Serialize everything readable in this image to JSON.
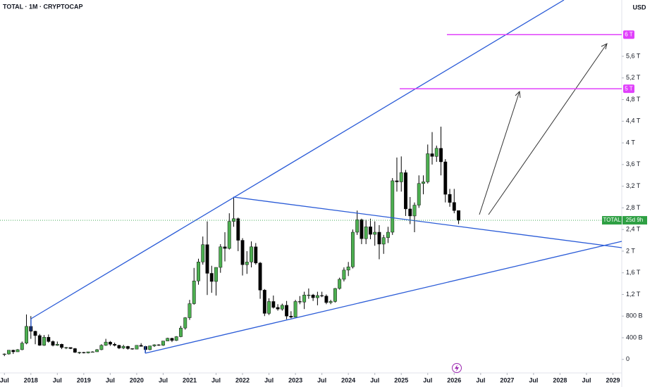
{
  "chart_data": {
    "type": "candlestick",
    "title": "TOTAL · 1M · CRYPTOCAP",
    "currency": "USD",
    "symbol": "TOTAL",
    "countdown": "25d 9h",
    "up_color": "#4caf50",
    "down_color": "#000000",
    "level_color": "#e040fb",
    "price_color": "#2ea043",
    "x": [
      "2017-07",
      "2017-08",
      "2017-09",
      "2017-10",
      "2017-11",
      "2017-12",
      "2018-01",
      "2018-02",
      "2018-03",
      "2018-04",
      "2018-05",
      "2018-06",
      "2018-07",
      "2018-08",
      "2018-09",
      "2018-10",
      "2018-11",
      "2018-12",
      "2019-01",
      "2019-02",
      "2019-03",
      "2019-04",
      "2019-05",
      "2019-06",
      "2019-07",
      "2019-08",
      "2019-09",
      "2019-10",
      "2019-11",
      "2019-12",
      "2020-01",
      "2020-02",
      "2020-03",
      "2020-04",
      "2020-05",
      "2020-06",
      "2020-07",
      "2020-08",
      "2020-09",
      "2020-10",
      "2020-11",
      "2020-12",
      "2021-01",
      "2021-02",
      "2021-03",
      "2021-04",
      "2021-05",
      "2021-06",
      "2021-07",
      "2021-08",
      "2021-09",
      "2021-10",
      "2021-11",
      "2021-12",
      "2022-01",
      "2022-02",
      "2022-03",
      "2022-04",
      "2022-05",
      "2022-06",
      "2022-07",
      "2022-08",
      "2022-09",
      "2022-10",
      "2022-11",
      "2022-12",
      "2023-01",
      "2023-02",
      "2023-03",
      "2023-04",
      "2023-05",
      "2023-06",
      "2023-07",
      "2023-08",
      "2023-09",
      "2023-10",
      "2023-11",
      "2023-12",
      "2024-01",
      "2024-02",
      "2024-03",
      "2024-04",
      "2024-05",
      "2024-06",
      "2024-07",
      "2024-08",
      "2024-09",
      "2024-10",
      "2024-11",
      "2024-12",
      "2025-01",
      "2025-02",
      "2025-03",
      "2025-04",
      "2025-05",
      "2025-06",
      "2025-07",
      "2025-08",
      "2025-09",
      "2025-10",
      "2025-11",
      "2025-12",
      "2026-01",
      "2026-02"
    ],
    "open": [
      0.1,
      0.1,
      0.17,
      0.14,
      0.18,
      0.3,
      0.61,
      0.52,
      0.44,
      0.26,
      0.41,
      0.33,
      0.26,
      0.28,
      0.22,
      0.22,
      0.2,
      0.13,
      0.13,
      0.12,
      0.14,
      0.14,
      0.18,
      0.26,
      0.32,
      0.28,
      0.26,
      0.21,
      0.24,
      0.2,
      0.19,
      0.26,
      0.24,
      0.18,
      0.25,
      0.27,
      0.26,
      0.34,
      0.39,
      0.35,
      0.42,
      0.58,
      0.77,
      1.03,
      1.45,
      1.8,
      2.12,
      1.59,
      1.44,
      1.7,
      2.08,
      2.05,
      2.55,
      2.6,
      2.2,
      1.75,
      1.8,
      2.08,
      1.78,
      1.28,
      0.85,
      1.07,
      0.96,
      0.93,
      1.0,
      0.8,
      0.78,
      1.07,
      1.06,
      1.19,
      1.19,
      1.14,
      1.18,
      1.17,
      1.05,
      1.07,
      1.31,
      1.48,
      1.65,
      1.71,
      2.35,
      2.58,
      2.23,
      2.45,
      2.31,
      2.35,
      2.13,
      2.25,
      2.35,
      3.3,
      3.28,
      3.45,
      2.78,
      2.65,
      2.85,
      3.25,
      3.28,
      3.8,
      3.75,
      3.9,
      3.65,
      3.05,
      2.9,
      2.75
    ],
    "high": [
      0.11,
      0.17,
      0.18,
      0.19,
      0.33,
      0.83,
      0.8,
      0.53,
      0.47,
      0.45,
      0.46,
      0.35,
      0.33,
      0.29,
      0.23,
      0.22,
      0.21,
      0.14,
      0.14,
      0.14,
      0.15,
      0.19,
      0.28,
      0.38,
      0.34,
      0.31,
      0.27,
      0.27,
      0.25,
      0.2,
      0.26,
      0.3,
      0.25,
      0.25,
      0.28,
      0.28,
      0.34,
      0.4,
      0.4,
      0.43,
      0.62,
      0.78,
      1.1,
      1.69,
      1.86,
      2.27,
      2.55,
      1.73,
      1.7,
      2.13,
      2.35,
      2.7,
      3.0,
      2.62,
      2.24,
      2.0,
      2.18,
      2.15,
      1.8,
      1.3,
      1.13,
      1.18,
      1.02,
      1.03,
      1.08,
      0.89,
      1.1,
      1.17,
      1.25,
      1.31,
      1.21,
      1.25,
      1.25,
      1.2,
      1.1,
      1.32,
      1.51,
      1.7,
      1.8,
      2.4,
      2.75,
      2.6,
      2.58,
      2.6,
      2.55,
      2.48,
      2.3,
      2.45,
      3.35,
      3.73,
      3.75,
      3.5,
      3.0,
      2.9,
      3.4,
      3.4,
      3.97,
      4.2,
      3.95,
      4.3,
      3.7,
      3.15,
      3.15,
      2.75
    ],
    "low": [
      0.06,
      0.09,
      0.1,
      0.14,
      0.17,
      0.28,
      0.38,
      0.28,
      0.25,
      0.25,
      0.31,
      0.24,
      0.25,
      0.19,
      0.19,
      0.19,
      0.12,
      0.1,
      0.11,
      0.11,
      0.13,
      0.14,
      0.17,
      0.25,
      0.25,
      0.24,
      0.19,
      0.19,
      0.18,
      0.18,
      0.19,
      0.24,
      0.13,
      0.17,
      0.23,
      0.25,
      0.25,
      0.34,
      0.32,
      0.34,
      0.41,
      0.55,
      0.73,
      1.01,
      1.38,
      1.75,
      1.19,
      1.23,
      1.18,
      1.6,
      1.81,
      2.03,
      2.45,
      2.0,
      1.55,
      1.58,
      1.7,
      1.75,
      1.12,
      0.8,
      0.82,
      0.94,
      0.9,
      0.9,
      0.74,
      0.76,
      0.78,
      1.02,
      0.93,
      1.12,
      1.08,
      1.0,
      1.15,
      1.02,
      1.02,
      1.05,
      1.29,
      1.44,
      1.54,
      1.68,
      2.3,
      2.13,
      2.13,
      2.22,
      2.1,
      1.85,
      1.95,
      2.15,
      2.3,
      3.1,
      3.1,
      2.65,
      2.5,
      2.35,
      2.8,
      3.05,
      3.25,
      3.6,
      3.65,
      3.4,
      2.9,
      2.82,
      2.7,
      2.5
    ],
    "close": [
      0.1,
      0.17,
      0.14,
      0.18,
      0.3,
      0.61,
      0.52,
      0.44,
      0.26,
      0.41,
      0.33,
      0.26,
      0.28,
      0.22,
      0.22,
      0.2,
      0.13,
      0.13,
      0.12,
      0.14,
      0.14,
      0.18,
      0.26,
      0.32,
      0.28,
      0.26,
      0.21,
      0.24,
      0.2,
      0.19,
      0.26,
      0.24,
      0.18,
      0.25,
      0.27,
      0.26,
      0.34,
      0.39,
      0.35,
      0.42,
      0.58,
      0.77,
      1.03,
      1.45,
      1.8,
      2.12,
      1.59,
      1.44,
      1.7,
      2.08,
      2.05,
      2.55,
      2.6,
      2.2,
      1.75,
      1.8,
      2.08,
      1.78,
      1.28,
      0.85,
      1.07,
      0.96,
      0.93,
      1.0,
      0.8,
      0.78,
      1.07,
      1.06,
      1.19,
      1.19,
      1.14,
      1.18,
      1.17,
      1.05,
      1.07,
      1.31,
      1.48,
      1.65,
      1.71,
      2.35,
      2.58,
      2.23,
      2.45,
      2.31,
      2.35,
      2.13,
      2.25,
      2.35,
      3.3,
      3.28,
      3.45,
      2.78,
      2.65,
      2.85,
      3.25,
      3.28,
      3.8,
      3.75,
      3.9,
      3.65,
      3.05,
      2.9,
      2.75,
      2.57
    ],
    "xlim": [
      "2017-06",
      "2029-03"
    ],
    "xticks": [
      {
        "value": "2017-07",
        "label": "Jul"
      },
      {
        "value": "2018-01",
        "label": "2018"
      },
      {
        "value": "2018-07",
        "label": "Jul"
      },
      {
        "value": "2019-01",
        "label": "2019"
      },
      {
        "value": "2019-07",
        "label": "Jul"
      },
      {
        "value": "2020-01",
        "label": "2020"
      },
      {
        "value": "2020-07",
        "label": "Jul"
      },
      {
        "value": "2021-01",
        "label": "2021"
      },
      {
        "value": "2021-07",
        "label": "Jul"
      },
      {
        "value": "2022-01",
        "label": "2022"
      },
      {
        "value": "2022-07",
        "label": "Jul"
      },
      {
        "value": "2023-01",
        "label": "2023"
      },
      {
        "value": "2023-07",
        "label": "Jul"
      },
      {
        "value": "2024-01",
        "label": "2024"
      },
      {
        "value": "2024-07",
        "label": "Jul"
      },
      {
        "value": "2025-01",
        "label": "2025"
      },
      {
        "value": "2025-07",
        "label": "Jul"
      },
      {
        "value": "2026-01",
        "label": "2026"
      },
      {
        "value": "2026-07",
        "label": "Jul"
      },
      {
        "value": "2027-01",
        "label": "2027"
      },
      {
        "value": "2027-07",
        "label": "Jul"
      },
      {
        "value": "2028-01",
        "label": "2028"
      },
      {
        "value": "2028-07",
        "label": "Jul"
      },
      {
        "value": "2029-01",
        "label": "2029"
      }
    ],
    "ylim": [
      -0.25,
      6.64
    ],
    "yticks": [
      0,
      {
        "value": 0.4,
        "label": "400 B"
      },
      {
        "value": 0.8,
        "label": "800 B"
      },
      {
        "value": 1.2,
        "label": "1,2 T"
      },
      {
        "value": 1.6,
        "label": "1,6 T"
      },
      {
        "value": 2,
        "label": "2 T"
      },
      {
        "value": 2.4,
        "label": "2,4 T"
      },
      {
        "value": 2.8,
        "label": "2,8 T"
      },
      {
        "value": 3.2,
        "label": "3,2 T"
      },
      {
        "value": 3.6,
        "label": "3,6 T"
      },
      {
        "value": 4,
        "label": "4 T"
      },
      {
        "value": 4.4,
        "label": "4,4 T"
      },
      {
        "value": 4.8,
        "label": "4,8 T"
      },
      {
        "value": 5.2,
        "label": "5,2 T"
      },
      {
        "value": 5.6,
        "label": "5,6 T"
      }
    ],
    "levels": [
      {
        "value": 5,
        "label": "5 T"
      },
      {
        "value": 6,
        "label": "6 T"
      }
    ]
  }
}
